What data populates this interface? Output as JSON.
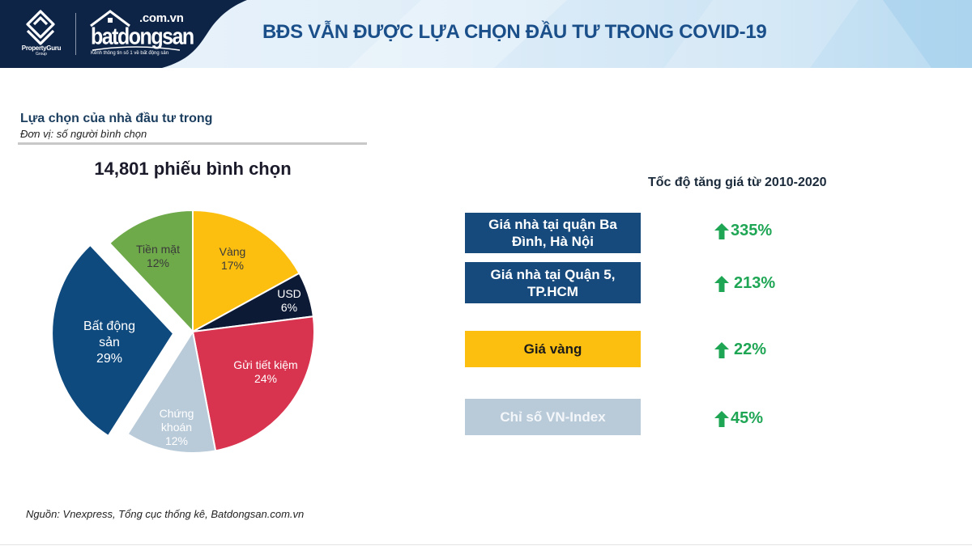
{
  "header": {
    "title": "BĐS VẪN ĐƯỢC LỰA CHỌN ĐẦU TƯ TRONG COVID-19",
    "logos": {
      "propertyguru_name": "PropertyGuru",
      "propertyguru_sub": "Group",
      "bds_domain": ".com.vn",
      "bds_name": "batdongsan",
      "bds_tagline": "Kênh thông tin số 1 về bất động sản"
    }
  },
  "left_panel": {
    "title": "Lựa chọn của nhà đầu tư trong",
    "unit": "Đơn vị: số người bình chọn",
    "total_votes": "14,801 phiếu bình chọn"
  },
  "right_panel": {
    "title": "Tốc độ tăng giá từ 2010-2020",
    "rows": [
      {
        "label_line1": "Giá nhà tại quận Ba",
        "label_line2": "Đình, Hà Nội",
        "value": "335%",
        "box_color": "#164a7c",
        "text_color": "#ffffff"
      },
      {
        "label_line1": "Giá nhà tại Quận 5,",
        "label_line2": "TP.HCM",
        "value": "213%",
        "box_color": "#164a7c",
        "text_color": "#ffffff"
      },
      {
        "label_line1": "Giá vàng",
        "label_line2": "",
        "value": "22%",
        "box_color": "#fdbf0f",
        "text_color": "#1a1a1a"
      },
      {
        "label_line1": "Chỉ số VN-Index",
        "label_line2": "",
        "value": "45%",
        "box_color": "#b9cad9",
        "text_color": "#f4f7fa"
      }
    ],
    "arrow_icon": "arrow-up-icon",
    "arrow_color": "#1fa655"
  },
  "footer": {
    "source": "Nguồn: Vnexpress, Tổng cục thống kê, Batdongsan.com.vn"
  },
  "chart_data": [
    {
      "type": "pie",
      "title": "Lựa chọn của nhà đầu tư trong",
      "subtitle": "14,801 phiếu bình chọn",
      "unit": "số người bình chọn",
      "start_angle": "12 o'clock, clockwise",
      "categories": [
        "Vàng",
        "USD",
        "Gửi tiết kiệm",
        "Chứng khoán",
        "Bất động sản",
        "Tiền mặt"
      ],
      "values": [
        17,
        6,
        24,
        12,
        29,
        12
      ],
      "labels": [
        "17%",
        "6%",
        "24%",
        "12%",
        "29%",
        "12%"
      ],
      "colors": [
        "#fdbf0f",
        "#0d1a36",
        "#d8344f",
        "#b9cad9",
        "#0f4a7e",
        "#6ea94a"
      ],
      "label_colors": [
        "#3a3a3a",
        "#ffffff",
        "#ffffff",
        "#ffffff",
        "#ffffff",
        "#3a3a3a"
      ],
      "exploded": [
        "Bất động sản"
      ],
      "legend": "none (inline labels)"
    },
    {
      "type": "table",
      "title": "Tốc độ tăng giá từ 2010-2020",
      "categories": [
        "Giá nhà tại quận Ba Đình, Hà Nội",
        "Giá nhà tại Quận 5, TP.HCM",
        "Giá vàng",
        "Chỉ số VN-Index"
      ],
      "values": [
        335,
        213,
        22,
        45
      ],
      "unit": "%",
      "direction": "up"
    }
  ]
}
